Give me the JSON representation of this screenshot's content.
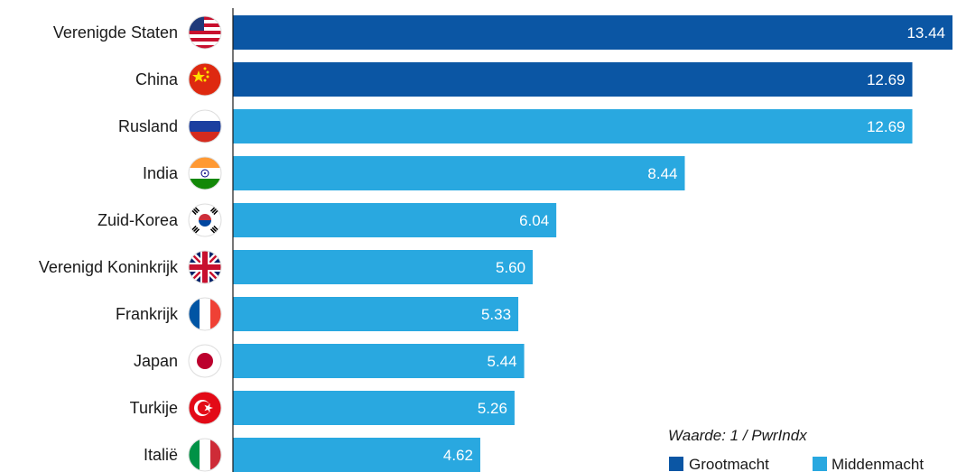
{
  "chart_data": {
    "type": "bar",
    "orientation": "horizontal",
    "categories": [
      "Verenigde Staten",
      "China",
      "Rusland",
      "India",
      "Zuid-Korea",
      "Verenigd Koninkrijk",
      "Frankrijk",
      "Japan",
      "Turkije",
      "Italië"
    ],
    "values": [
      13.44,
      12.69,
      12.69,
      8.44,
      6.04,
      5.6,
      5.33,
      5.44,
      5.26,
      4.62
    ],
    "value_labels": [
      "13.44",
      "12.69",
      "12.69",
      "8.44",
      "6.04",
      "5.60",
      "5.33",
      "5.44",
      "5.26",
      "4.62"
    ],
    "groups": [
      "Grootmacht",
      "Grootmacht",
      "Middenmacht",
      "Middenmacht",
      "Middenmacht",
      "Middenmacht",
      "Middenmacht",
      "Middenmacht",
      "Middenmacht",
      "Middenmacht"
    ],
    "xlim": [
      0,
      14
    ],
    "flag_icons": [
      "us-flag-icon",
      "china-flag-icon",
      "russia-flag-icon",
      "india-flag-icon",
      "south-korea-flag-icon",
      "uk-flag-icon",
      "france-flag-icon",
      "japan-flag-icon",
      "turkey-flag-icon",
      "italy-flag-icon"
    ],
    "note": "Waarde: 1 / PwrIndx",
    "legend": [
      {
        "name": "Grootmacht",
        "color": "#0b56a4"
      },
      {
        "name": "Middenmacht",
        "color": "#29a8e0"
      }
    ],
    "legend_position": "bottom-right",
    "grid": false
  }
}
